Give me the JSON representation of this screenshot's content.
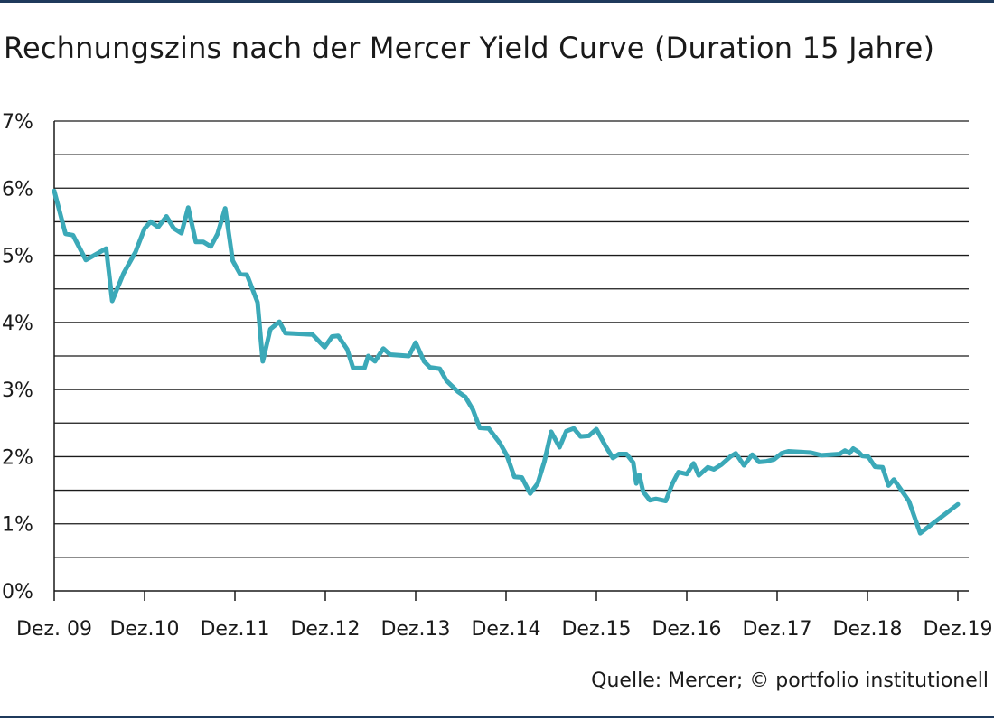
{
  "title": "Rechnungszins nach der Mercer Yield Curve (Duration 15 Jahre)",
  "source": "Quelle: Mercer; © portfolio institutionell",
  "colors": {
    "line": "#3ba9b8",
    "grid": "#1a1a1a",
    "rule": "#1f3a5c"
  },
  "chart_data": {
    "type": "line",
    "title": "Rechnungszins nach der Mercer Yield Curve (Duration 15 Jahre)",
    "xlabel": "",
    "ylabel": "",
    "ylim": [
      0,
      7
    ],
    "xlim": [
      0,
      120
    ],
    "grid": true,
    "x_unit": "months since Dez. 09",
    "y_ticks": [
      {
        "v": 0,
        "label": "0%"
      },
      {
        "v": 1,
        "label": "1%"
      },
      {
        "v": 2,
        "label": "2%"
      },
      {
        "v": 3,
        "label": "3%"
      },
      {
        "v": 4,
        "label": "4%"
      },
      {
        "v": 5,
        "label": "5%"
      },
      {
        "v": 6,
        "label": "6%"
      },
      {
        "v": 7,
        "label": "7%"
      }
    ],
    "x_ticks": [
      {
        "v": 0,
        "label": "Dez. 09"
      },
      {
        "v": 12,
        "label": "Dez.10"
      },
      {
        "v": 24,
        "label": "Dez.11"
      },
      {
        "v": 36,
        "label": "Dez.12"
      },
      {
        "v": 48,
        "label": "Dez.13"
      },
      {
        "v": 60,
        "label": "Dez.14"
      },
      {
        "v": 72,
        "label": "Dez.15"
      },
      {
        "v": 84,
        "label": "Dez.16"
      },
      {
        "v": 96,
        "label": "Dez.17"
      },
      {
        "v": 108,
        "label": "Dez.18"
      },
      {
        "v": 120,
        "label": "Dez.19"
      }
    ],
    "series": [
      {
        "name": "",
        "points": [
          [
            0,
            5.96
          ],
          [
            1.5,
            5.32
          ],
          [
            2.5,
            5.3
          ],
          [
            4.2,
            4.93
          ],
          [
            6.9,
            5.1
          ],
          [
            7.7,
            4.32
          ],
          [
            9.2,
            4.73
          ],
          [
            10.8,
            5.05
          ],
          [
            12.0,
            5.4
          ],
          [
            12.8,
            5.5
          ],
          [
            13.8,
            5.42
          ],
          [
            14.9,
            5.58
          ],
          [
            15.9,
            5.4
          ],
          [
            16.9,
            5.33
          ],
          [
            17.8,
            5.71
          ],
          [
            18.8,
            5.2
          ],
          [
            19.8,
            5.2
          ],
          [
            20.8,
            5.13
          ],
          [
            21.7,
            5.32
          ],
          [
            22.7,
            5.7
          ],
          [
            23.7,
            4.92
          ],
          [
            24.7,
            4.72
          ],
          [
            25.6,
            4.71
          ],
          [
            27.0,
            4.3
          ],
          [
            27.7,
            3.42
          ],
          [
            28.7,
            3.9
          ],
          [
            29.9,
            4.01
          ],
          [
            30.7,
            3.84
          ],
          [
            34.3,
            3.82
          ],
          [
            35.9,
            3.63
          ],
          [
            36.9,
            3.79
          ],
          [
            37.7,
            3.8
          ],
          [
            38.9,
            3.6
          ],
          [
            39.7,
            3.32
          ],
          [
            41.2,
            3.32
          ],
          [
            41.7,
            3.5
          ],
          [
            42.6,
            3.42
          ],
          [
            43.7,
            3.61
          ],
          [
            44.6,
            3.52
          ],
          [
            47.1,
            3.5
          ],
          [
            48.0,
            3.7
          ],
          [
            49.1,
            3.42
          ],
          [
            49.9,
            3.33
          ],
          [
            51.2,
            3.31
          ],
          [
            52.1,
            3.13
          ],
          [
            53.6,
            2.97
          ],
          [
            54.6,
            2.89
          ],
          [
            55.6,
            2.7
          ],
          [
            56.5,
            2.43
          ],
          [
            57.7,
            2.42
          ],
          [
            59.2,
            2.2
          ],
          [
            60.1,
            2.02
          ],
          [
            61.1,
            1.7
          ],
          [
            62.1,
            1.69
          ],
          [
            63.2,
            1.45
          ],
          [
            64.2,
            1.6
          ],
          [
            65.1,
            1.93
          ],
          [
            66.0,
            2.37
          ],
          [
            67.1,
            2.14
          ],
          [
            68.0,
            2.38
          ],
          [
            69.0,
            2.42
          ],
          [
            69.9,
            2.3
          ],
          [
            71.0,
            2.31
          ],
          [
            72.0,
            2.41
          ],
          [
            73.2,
            2.16
          ],
          [
            74.2,
            1.98
          ],
          [
            75.0,
            2.04
          ],
          [
            76.0,
            2.04
          ],
          [
            76.9,
            1.91
          ],
          [
            77.3,
            1.6
          ],
          [
            77.7,
            1.73
          ],
          [
            78.2,
            1.48
          ],
          [
            79.1,
            1.35
          ],
          [
            79.9,
            1.37
          ],
          [
            81.2,
            1.34
          ],
          [
            82.1,
            1.6
          ],
          [
            82.9,
            1.77
          ],
          [
            84.0,
            1.74
          ],
          [
            84.9,
            1.9
          ],
          [
            85.6,
            1.72
          ],
          [
            86.8,
            1.84
          ],
          [
            87.6,
            1.81
          ],
          [
            88.6,
            1.88
          ],
          [
            89.8,
            2.0
          ],
          [
            90.5,
            2.05
          ],
          [
            91.6,
            1.87
          ],
          [
            92.7,
            2.03
          ],
          [
            93.6,
            1.92
          ],
          [
            94.6,
            1.93
          ],
          [
            95.6,
            1.96
          ],
          [
            96.6,
            2.05
          ],
          [
            97.5,
            2.08
          ],
          [
            100.5,
            2.06
          ],
          [
            101.9,
            2.02
          ],
          [
            104.3,
            2.04
          ],
          [
            105.0,
            2.09
          ],
          [
            105.6,
            2.05
          ],
          [
            106.1,
            2.12
          ],
          [
            106.8,
            2.07
          ],
          [
            107.3,
            2.01
          ],
          [
            108.1,
            2.0
          ],
          [
            109.0,
            1.85
          ],
          [
            110.0,
            1.84
          ],
          [
            110.8,
            1.57
          ],
          [
            111.5,
            1.66
          ],
          [
            112.5,
            1.5
          ],
          [
            113.5,
            1.34
          ],
          [
            115.0,
            0.86
          ],
          [
            120.0,
            1.29
          ]
        ]
      }
    ]
  }
}
